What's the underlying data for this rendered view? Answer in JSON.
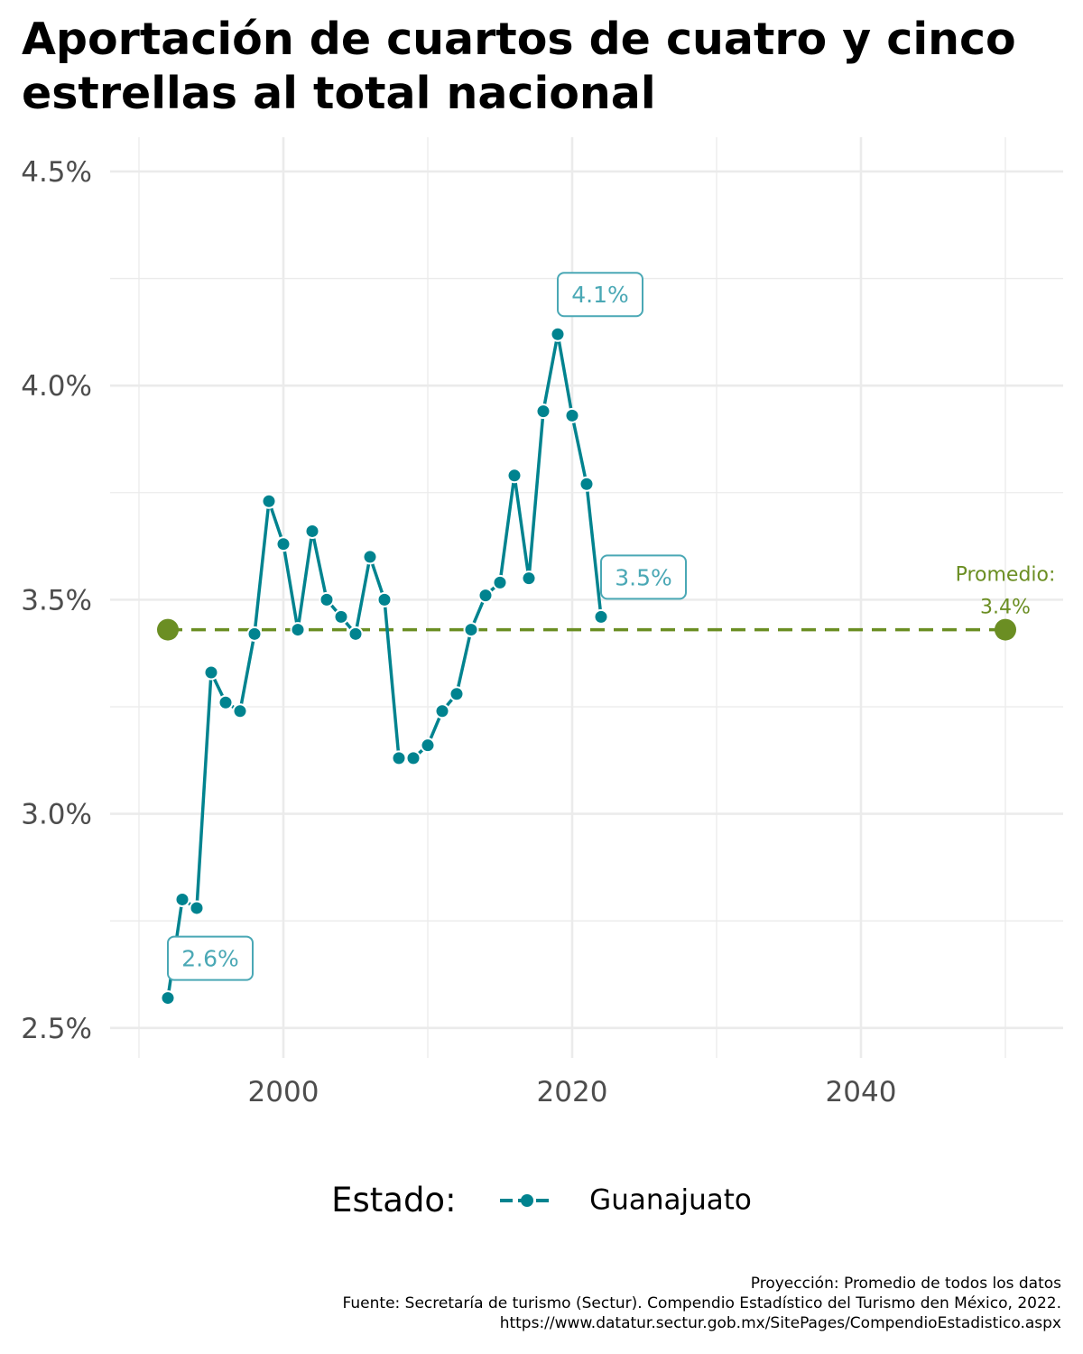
{
  "title": "Aportación de cuartos de cuatro y cinco estrellas al total nacional",
  "legend": {
    "title": "Estado:",
    "label": "Guanajuato"
  },
  "caption": {
    "line1": "Proyección: Promedio de todos los datos",
    "line2": "Fuente: Secretaría de turismo (Sectur). Compendio Estadístico del Turismo den México, 2022.",
    "line3": "https://www.datatur.sectur.gob.mx/SitePages/CompendioEstadistico.aspx"
  },
  "colors": {
    "series": "#00838f",
    "series_label": "#4aa8b5",
    "average": "#6b8e23",
    "grid": "#ebebeb"
  },
  "chart_data": {
    "type": "line",
    "title": "Aportación de cuartos de cuatro y cinco estrellas al total nacional",
    "xlim": [
      1988,
      2054
    ],
    "ylim": [
      2.43,
      4.58
    ],
    "x_ticks": [
      2000,
      2020,
      2040
    ],
    "x_tick_labels": [
      "2000",
      "2020",
      "2040"
    ],
    "y_ticks": [
      2.5,
      3.0,
      3.5,
      4.0,
      4.5
    ],
    "y_tick_labels": [
      "2.5%",
      "3.0%",
      "3.5%",
      "4.0%",
      "4.5%"
    ],
    "grid": true,
    "legend_position": "bottom",
    "series": [
      {
        "name": "Guanajuato",
        "x": [
          1992,
          1993,
          1994,
          1995,
          1996,
          1997,
          1998,
          1999,
          2000,
          2001,
          2002,
          2003,
          2004,
          2005,
          2006,
          2007,
          2008,
          2009,
          2010,
          2011,
          2012,
          2013,
          2014,
          2015,
          2016,
          2017,
          2018,
          2019,
          2020,
          2021,
          2022
        ],
        "y": [
          2.57,
          2.8,
          2.78,
          3.33,
          3.26,
          3.24,
          3.42,
          3.73,
          3.63,
          3.43,
          3.66,
          3.5,
          3.46,
          3.42,
          3.6,
          3.5,
          3.13,
          3.13,
          3.16,
          3.24,
          3.28,
          3.43,
          3.51,
          3.54,
          3.79,
          3.55,
          3.94,
          4.12,
          3.93,
          3.77,
          3.46
        ]
      }
    ],
    "average": {
      "label": "Promedio:",
      "value_label": "3.4%",
      "value": 3.43,
      "x_start": 1992,
      "x_end": 2050
    },
    "annotations": [
      {
        "text": "2.6%",
        "x": 1992,
        "y": 2.57
      },
      {
        "text": "4.1%",
        "x": 2019,
        "y": 4.12
      },
      {
        "text": "3.5%",
        "x": 2022,
        "y": 3.46
      }
    ]
  }
}
